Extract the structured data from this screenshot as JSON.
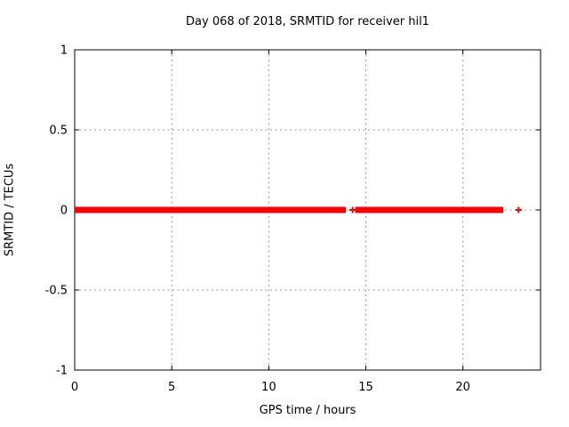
{
  "chart_data": {
    "type": "scatter",
    "title": "Day 068 of 2018, SRMTID for receiver hil1",
    "xlabel": "GPS time / hours",
    "ylabel": "SRMTID / TECUs",
    "xlim": [
      0,
      24
    ],
    "ylim": [
      -1,
      1
    ],
    "x_ticks": [
      0,
      5,
      10,
      15,
      20
    ],
    "y_ticks": [
      -1,
      -0.5,
      0,
      0.5,
      1
    ],
    "grid": true,
    "legend_position": "none",
    "marker": "plus",
    "marker_size_px": 7,
    "marker_stroke_px": 2,
    "colors": {
      "marker": "#ff0000",
      "grid": "#999999",
      "axis": "#000000",
      "text": "#000000",
      "background": "#ffffff"
    },
    "series": [
      {
        "name": "SRMTID",
        "value_y": 0,
        "dense_runs": [
          {
            "x_start": 0.0,
            "x_end": 13.97,
            "y": 0
          },
          {
            "x_start": 14.45,
            "x_end": 22.08,
            "y": 0
          }
        ],
        "isolated_points": [
          {
            "x": 14.32,
            "y": 0
          },
          {
            "x": 22.87,
            "y": 0
          }
        ]
      }
    ],
    "annotations": [],
    "notes": "Dense run of near-zero SRMTID values plotted as overlapping red plus markers along y=0 from 0 h to ~22.1 h, with a short data gap near 14.0-14.4 h (one lone marker inside the gap at ~14.3 h) and one isolated marker at ~22.9 h."
  }
}
